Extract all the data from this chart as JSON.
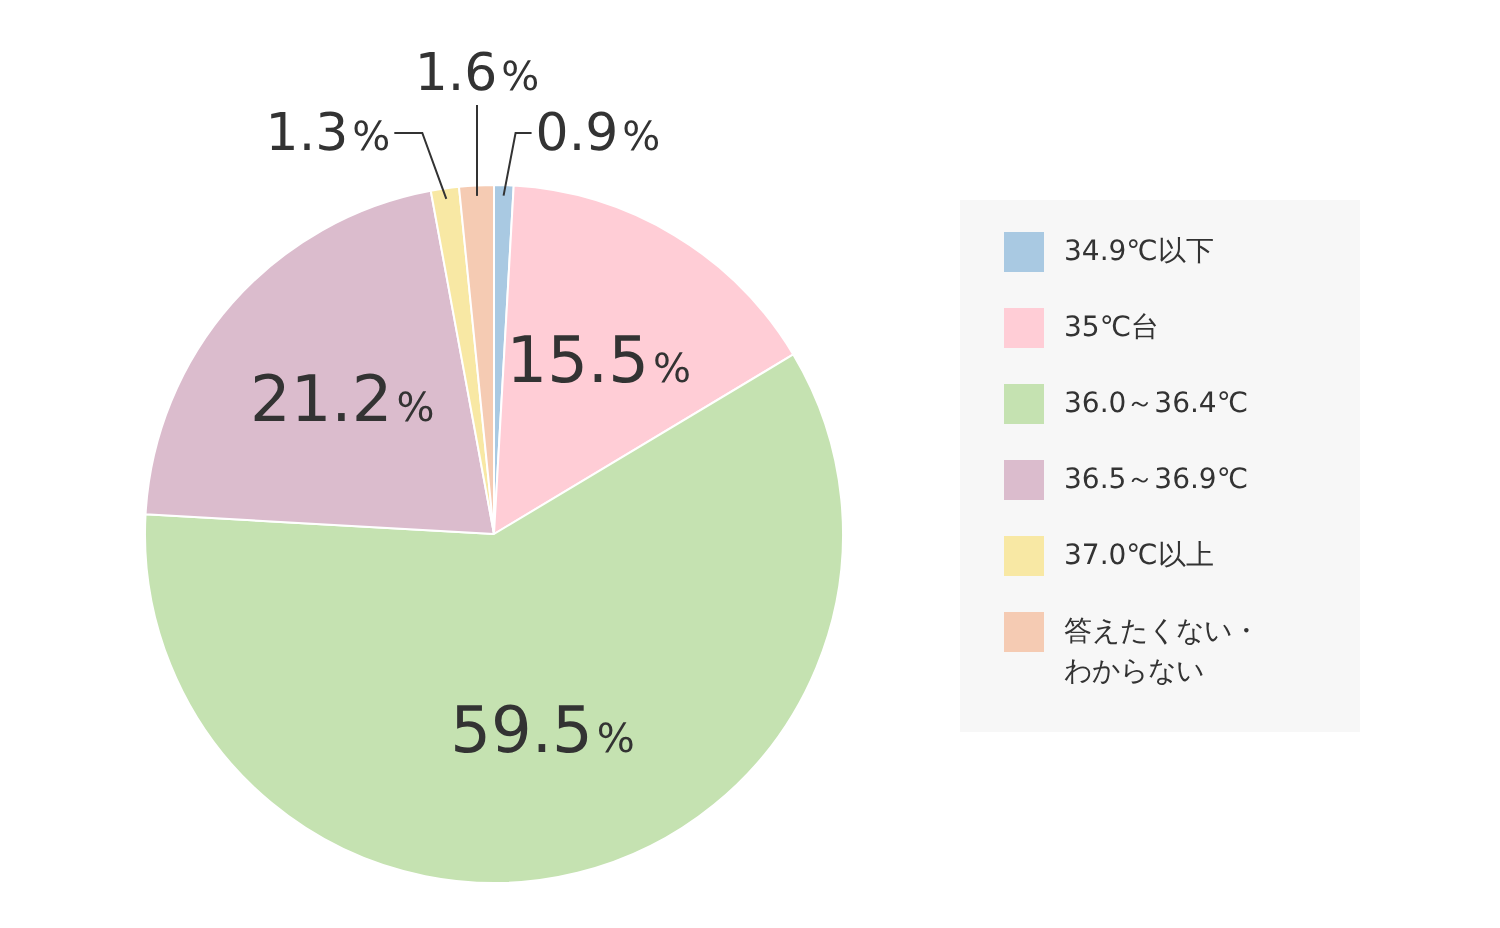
{
  "chart_data": {
    "type": "pie",
    "categories": [
      "34.9℃以下",
      "35℃台",
      "36.0～36.4℃",
      "36.5～36.9℃",
      "37.0℃以上",
      "答えたくない・わからない"
    ],
    "values": [
      0.9,
      15.5,
      59.5,
      21.2,
      1.3,
      1.6
    ],
    "colors": [
      "#a9c9e2",
      "#ffcdd6",
      "#c5e2b1",
      "#dbbccd",
      "#f8e8a4",
      "#f5cbb3"
    ],
    "value_labels": [
      "0.9%",
      "15.5%",
      "59.5%",
      "21.2%",
      "1.3%",
      "1.6%"
    ],
    "legend": "right"
  }
}
